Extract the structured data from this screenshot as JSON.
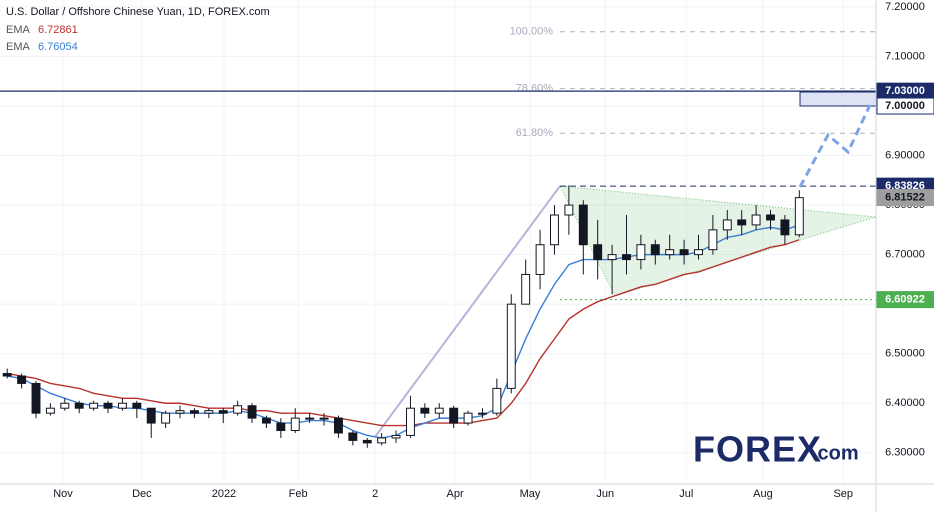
{
  "chart_data": {
    "type": "candlestick",
    "title": "U.S. Dollar / Offshore Chinese Yuan, 1D, FOREX.com",
    "x": [
      2,
      6,
      10,
      14,
      18,
      22,
      26,
      30,
      34,
      38,
      42,
      46,
      50,
      54,
      58,
      62,
      66,
      70,
      74,
      78,
      82,
      86,
      90,
      94,
      98,
      102,
      106,
      110,
      114,
      118,
      122,
      126,
      130,
      134,
      138,
      142,
      146,
      150,
      154,
      158,
      162,
      166,
      170,
      174,
      178,
      182,
      186,
      190,
      194,
      198,
      202,
      206,
      210,
      214,
      218,
      222
    ],
    "open": [
      6.46,
      6.455,
      6.44,
      6.38,
      6.39,
      6.4,
      6.39,
      6.4,
      6.39,
      6.4,
      6.39,
      6.36,
      6.38,
      6.385,
      6.38,
      6.385,
      6.38,
      6.395,
      6.37,
      6.36,
      6.345,
      6.37,
      6.37,
      6.37,
      6.34,
      6.325,
      6.32,
      6.33,
      6.335,
      6.39,
      6.38,
      6.39,
      6.36,
      6.38,
      6.38,
      6.43,
      6.6,
      6.66,
      6.72,
      6.78,
      6.8,
      6.72,
      6.69,
      6.7,
      6.69,
      6.72,
      6.7,
      6.71,
      6.7,
      6.71,
      6.75,
      6.77,
      6.76,
      6.78,
      6.77,
      6.74
    ],
    "high": [
      6.47,
      6.46,
      6.445,
      6.4,
      6.41,
      6.405,
      6.405,
      6.405,
      6.41,
      6.405,
      6.39,
      6.385,
      6.395,
      6.39,
      6.39,
      6.39,
      6.405,
      6.4,
      6.375,
      6.37,
      6.39,
      6.38,
      6.38,
      6.375,
      6.345,
      6.33,
      6.34,
      6.345,
      6.415,
      6.4,
      6.4,
      6.395,
      6.385,
      6.39,
      6.45,
      6.62,
      6.69,
      6.75,
      6.8,
      6.84,
      6.81,
      6.77,
      6.72,
      6.78,
      6.74,
      6.73,
      6.74,
      6.73,
      6.74,
      6.78,
      6.79,
      6.79,
      6.8,
      6.79,
      6.78,
      6.83
    ],
    "low": [
      6.45,
      6.43,
      6.37,
      6.375,
      6.385,
      6.38,
      6.385,
      6.38,
      6.385,
      6.37,
      6.33,
      6.35,
      6.37,
      6.37,
      6.37,
      6.36,
      6.375,
      6.36,
      6.35,
      6.33,
      6.34,
      6.36,
      6.355,
      6.33,
      6.315,
      6.31,
      6.315,
      6.32,
      6.33,
      6.37,
      6.37,
      6.35,
      6.355,
      6.37,
      6.375,
      6.42,
      6.6,
      6.63,
      6.7,
      6.74,
      6.66,
      6.65,
      6.62,
      6.66,
      6.67,
      6.68,
      6.69,
      6.68,
      6.69,
      6.7,
      6.73,
      6.74,
      6.75,
      6.75,
      6.72,
      6.735
    ],
    "close": [
      6.455,
      6.44,
      6.38,
      6.39,
      6.4,
      6.39,
      6.4,
      6.39,
      6.4,
      6.39,
      6.36,
      6.38,
      6.385,
      6.38,
      6.385,
      6.38,
      6.395,
      6.37,
      6.36,
      6.345,
      6.37,
      6.37,
      6.37,
      6.34,
      6.325,
      6.32,
      6.33,
      6.335,
      6.39,
      6.38,
      6.39,
      6.36,
      6.38,
      6.38,
      6.43,
      6.6,
      6.66,
      6.72,
      6.78,
      6.8,
      6.72,
      6.69,
      6.7,
      6.69,
      6.72,
      6.7,
      6.71,
      6.7,
      6.71,
      6.75,
      6.77,
      6.76,
      6.78,
      6.77,
      6.74,
      6.815
    ],
    "up_color": "#ffffff",
    "down_color": "#131722",
    "series": [
      {
        "name": "EMA",
        "last_value": 6.72861,
        "color": "#b8322e",
        "values": [
          6.46,
          6.455,
          6.45,
          6.44,
          6.435,
          6.43,
          6.42,
          6.415,
          6.41,
          6.41,
          6.405,
          6.4,
          6.4,
          6.395,
          6.39,
          6.39,
          6.39,
          6.385,
          6.385,
          6.38,
          6.38,
          6.38,
          6.375,
          6.37,
          6.365,
          6.36,
          6.355,
          6.355,
          6.355,
          6.36,
          6.36,
          6.36,
          6.36,
          6.365,
          6.37,
          6.4,
          6.44,
          6.49,
          6.53,
          6.57,
          6.59,
          6.605,
          6.615,
          6.625,
          6.635,
          6.64,
          6.65,
          6.66,
          6.665,
          6.675,
          6.685,
          6.695,
          6.705,
          6.715,
          6.72,
          6.73
        ]
      },
      {
        "name": "EMA",
        "last_value": 6.76054,
        "color": "#3a7fd5",
        "values": [
          6.455,
          6.45,
          6.435,
          6.42,
          6.41,
          6.4,
          6.395,
          6.395,
          6.39,
          6.39,
          6.385,
          6.38,
          6.38,
          6.38,
          6.38,
          6.38,
          6.385,
          6.38,
          6.37,
          6.36,
          6.36,
          6.365,
          6.365,
          6.36,
          6.345,
          6.335,
          6.33,
          6.335,
          6.35,
          6.36,
          6.37,
          6.37,
          6.37,
          6.375,
          6.39,
          6.46,
          6.53,
          6.59,
          6.64,
          6.68,
          6.69,
          6.69,
          6.69,
          6.695,
          6.7,
          6.7,
          6.7,
          6.7,
          6.705,
          6.72,
          6.735,
          6.74,
          6.75,
          6.755,
          6.75,
          6.76
        ]
      }
    ],
    "xlim": [
      0,
      243.3
    ],
    "xticks": [
      {
        "value": 17.5,
        "label": "Nov"
      },
      {
        "value": 39.4,
        "label": "Dec"
      },
      {
        "value": 62.2,
        "label": "2022"
      },
      {
        "value": 82.8,
        "label": "Feb"
      },
      {
        "value": 104.2,
        "label": "2"
      },
      {
        "value": 126.4,
        "label": "Apr"
      },
      {
        "value": 147.2,
        "label": "May"
      },
      {
        "value": 168.1,
        "label": "Jun"
      },
      {
        "value": 190.6,
        "label": "Jul"
      },
      {
        "value": 211.9,
        "label": "Aug"
      },
      {
        "value": 234.2,
        "label": "Sep"
      }
    ],
    "ylim": [
      6.237,
      7.214
    ],
    "yticks": [
      {
        "value": 6.3,
        "label": "6.30000"
      },
      {
        "value": 6.4,
        "label": "6.40000"
      },
      {
        "value": 6.5,
        "label": "6.50000"
      },
      {
        "value": 6.6,
        "label": "6.60000"
      },
      {
        "value": 6.7,
        "label": "6.70000"
      },
      {
        "value": 6.8,
        "label": "6.80000"
      },
      {
        "value": 6.9,
        "label": "6.90000"
      },
      {
        "value": 7.0,
        "label": "7.00000"
      },
      {
        "value": 7.1,
        "label": "7.10000"
      },
      {
        "value": 7.2,
        "label": "7.20000"
      }
    ],
    "grid": true,
    "price_labels": [
      {
        "value": 7.03,
        "label": "7.03000",
        "color": "#1c2b68",
        "text_color": "#ffffff",
        "line": "solid"
      },
      {
        "value": 7.0,
        "label": "7.00000",
        "color": "#ffffff",
        "text_color": "#131722",
        "line": "none"
      },
      {
        "value": 6.83826,
        "label": "6.83826",
        "color": "#1c2b68",
        "text_color": "#ffffff",
        "line": "dashed"
      },
      {
        "value": 6.81522,
        "label": "6.81522",
        "color": "#9e9e9e",
        "text_color": "#131722",
        "line": "none"
      },
      {
        "value": 6.60922,
        "label": "6.60922",
        "color": "#4caf50",
        "text_color": "#ffffff",
        "line": "dotted"
      }
    ],
    "fib_levels": [
      {
        "value": 100,
        "label": "100.00%",
        "price": 7.15
      },
      {
        "value": 78.6,
        "label": "78.60%",
        "price": 7.035
      },
      {
        "value": 61.8,
        "label": "61.80%",
        "price": 6.945
      }
    ],
    "logo": "FOREX",
    "logo_suffix": ".com"
  }
}
